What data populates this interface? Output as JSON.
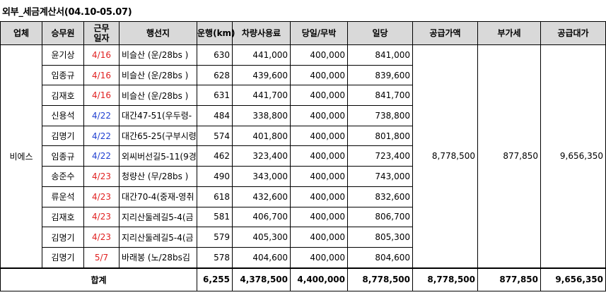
{
  "title": "외부_세금계산서(04.10-05.07)",
  "headers": [
    "업체",
    "승무원",
    "근무\n일자",
    "행선지",
    "운행(km)",
    "차량사용료",
    "당일/무박",
    "일당",
    "공급가액",
    "부가세",
    "공급대가"
  ],
  "company": "비에스",
  "rows": [
    {
      "crew": "윤기상",
      "date": "4/16",
      "date_color": "red",
      "dest": "비슬산 (운/28bs )",
      "km": "630",
      "fee": "441,000",
      "daily": "400,000",
      "allowance": "841,000"
    },
    {
      "crew": "임종규",
      "date": "4/16",
      "date_color": "red",
      "dest": "비슬산 (운/28bs )",
      "km": "628",
      "fee": "439,600",
      "daily": "400,000",
      "allowance": "839,600"
    },
    {
      "crew": "김재호",
      "date": "4/16",
      "date_color": "red",
      "dest": "비슬산 (운/28bs )",
      "km": "631",
      "fee": "441,700",
      "daily": "400,000",
      "allowance": "841,700"
    },
    {
      "crew": "신용석",
      "date": "4/22",
      "date_color": "blue",
      "dest": "대간47-51(우두령-",
      "km": "484",
      "fee": "338,800",
      "daily": "400,000",
      "allowance": "738,800"
    },
    {
      "crew": "김명기",
      "date": "4/22",
      "date_color": "blue",
      "dest": "대간65-25(구부시령",
      "km": "574",
      "fee": "401,800",
      "daily": "400,000",
      "allowance": "801,800"
    },
    {
      "crew": "임종규",
      "date": "4/22",
      "date_color": "blue",
      "dest": "외씨버선길5-11(9경",
      "km": "462",
      "fee": "323,400",
      "daily": "400,000",
      "allowance": "723,400"
    },
    {
      "crew": "송준수",
      "date": "4/23",
      "date_color": "red",
      "dest": "청량산 (무/28bs )",
      "km": "490",
      "fee": "343,000",
      "daily": "400,000",
      "allowance": "743,000"
    },
    {
      "crew": "류운석",
      "date": "4/23",
      "date_color": "red",
      "dest": "대간70-4(중재-영취",
      "km": "618",
      "fee": "432,600",
      "daily": "400,000",
      "allowance": "832,600"
    },
    {
      "crew": "김재호",
      "date": "4/23",
      "date_color": "red",
      "dest": "지리산둘레길5-4(금",
      "km": "581",
      "fee": "406,700",
      "daily": "400,000",
      "allowance": "806,700"
    },
    {
      "crew": "김명기",
      "date": "4/23",
      "date_color": "red",
      "dest": "지리산둘레길5-4(금",
      "km": "579",
      "fee": "405,300",
      "daily": "400,000",
      "allowance": "805,300"
    },
    {
      "crew": "김명기",
      "date": "5/7",
      "date_color": "red",
      "dest": "바래봉 (노/28bs김",
      "km": "578",
      "fee": "404,600",
      "daily": "400,000",
      "allowance": "804,600"
    }
  ],
  "merged": {
    "supply": "8,778,500",
    "vat": "877,850",
    "total": "9,656,350"
  },
  "footer": {
    "label": "합계",
    "km": "6,255",
    "fee": "4,378,500",
    "daily": "4,400,000",
    "allowance": "8,778,500",
    "supply": "8,778,500",
    "vat": "877,850",
    "total": "9,656,350"
  },
  "colors": {
    "header_bg": "#d9d9d9",
    "red": "#e02020",
    "blue": "#1f3fd0"
  }
}
